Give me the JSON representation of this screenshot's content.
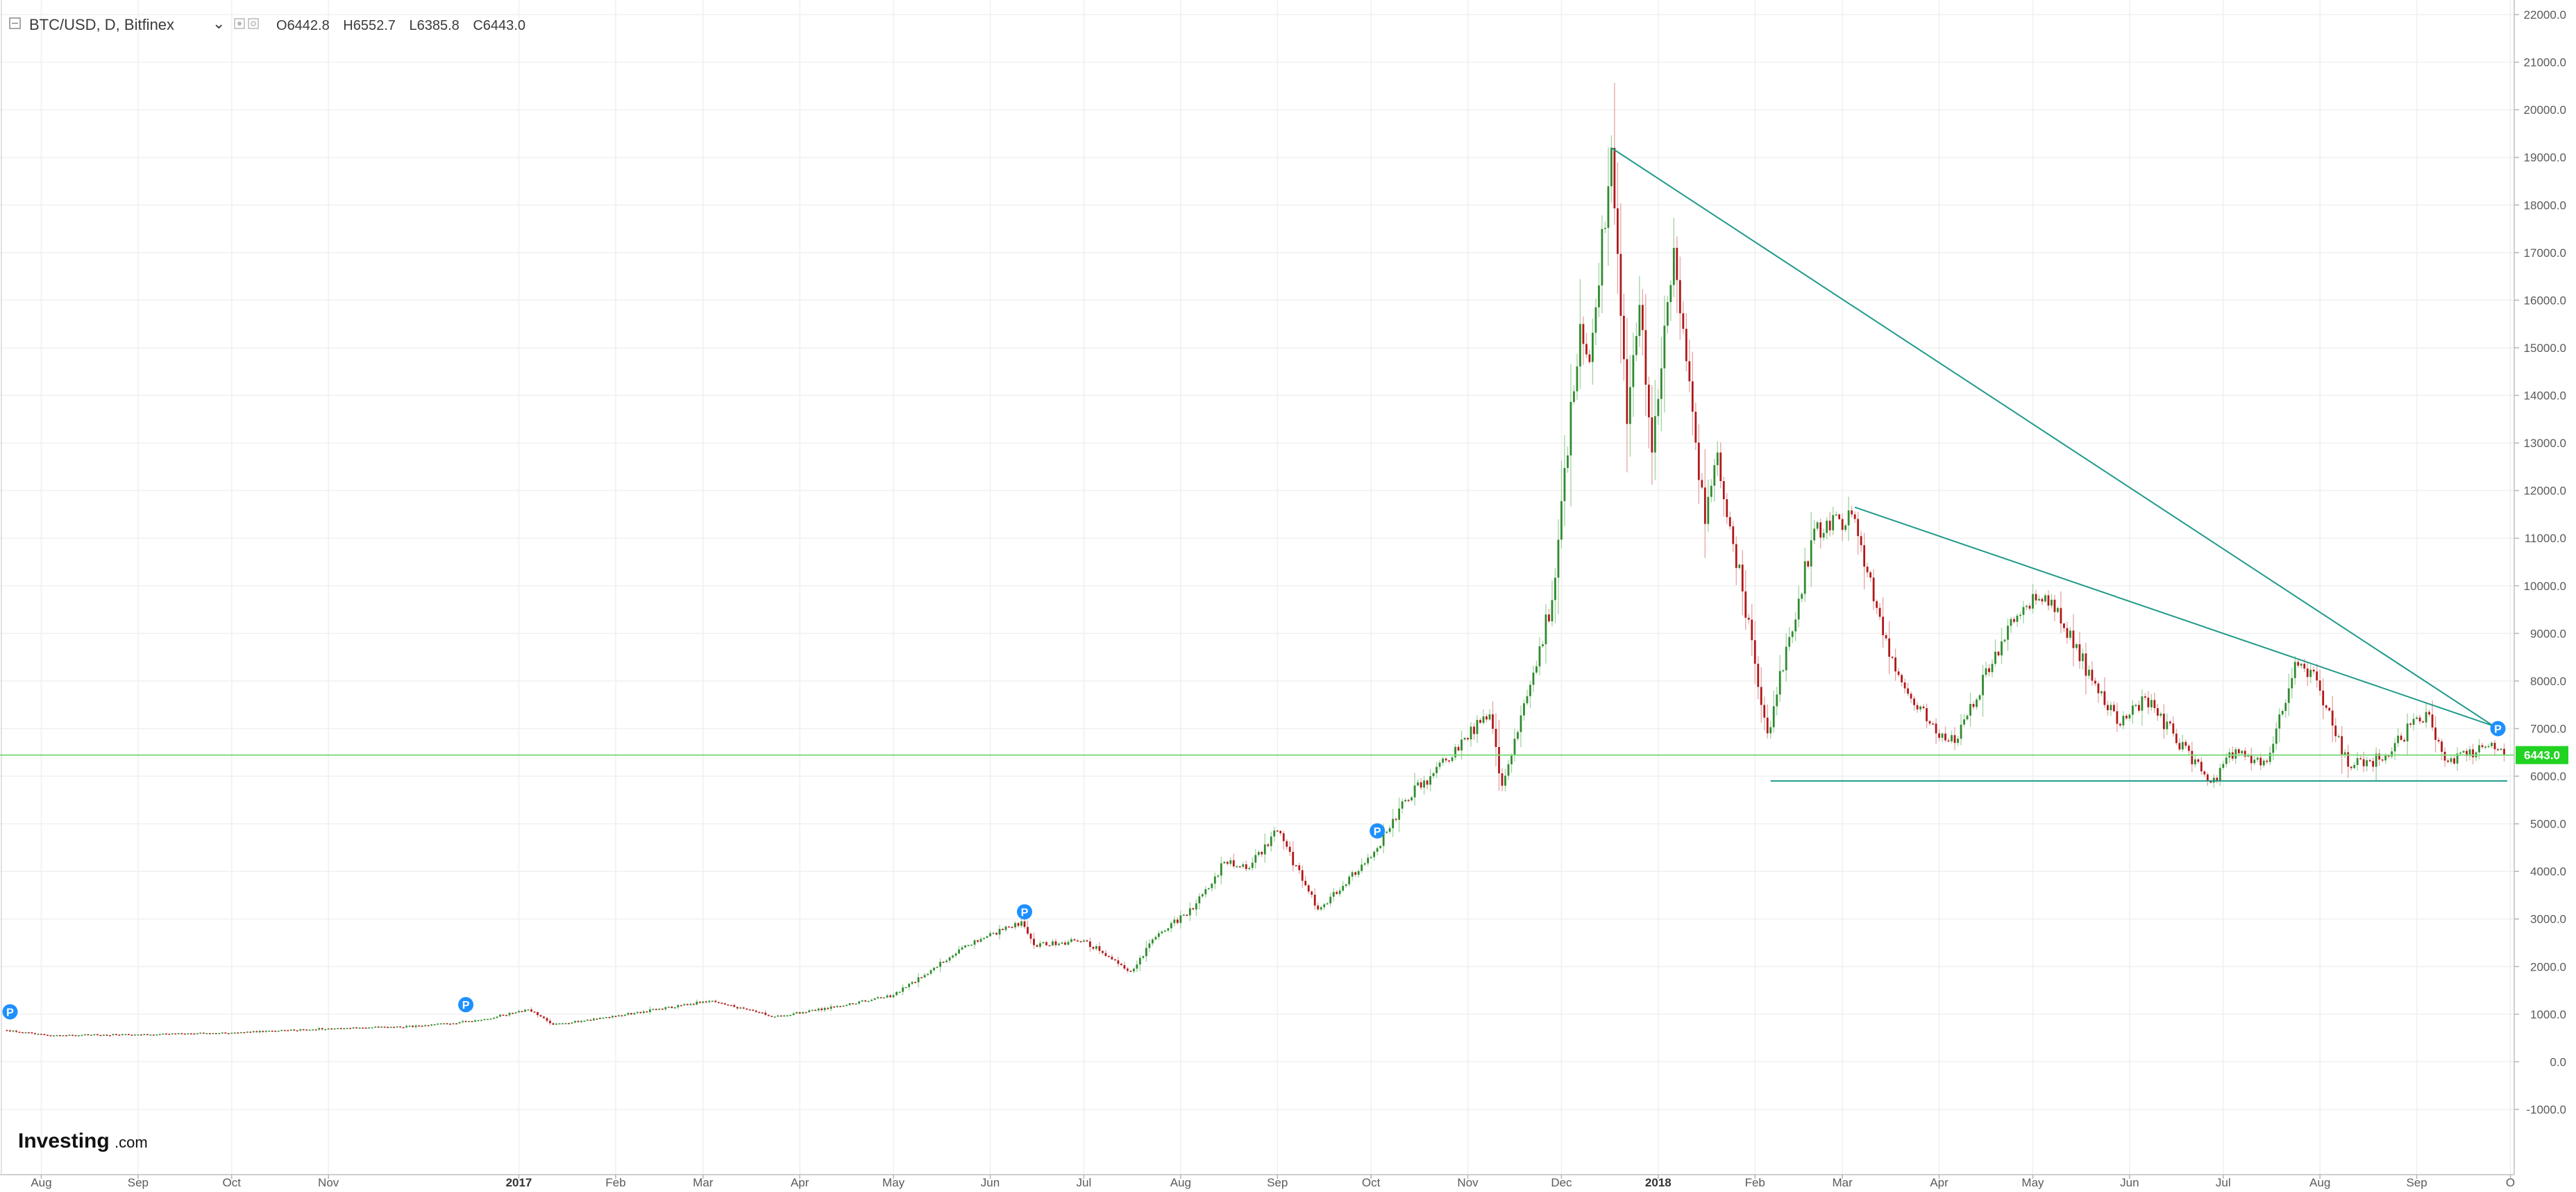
{
  "header": {
    "symbol": "BTC/USD, D, Bitfinex",
    "dropdown_glyph": "⌄",
    "ohlc": {
      "open_label": "O",
      "open": "6442.8",
      "high_label": "H",
      "high": "6552.7",
      "low_label": "L",
      "low": "6385.8",
      "close_label": "C",
      "close": "6443.0"
    }
  },
  "logo": {
    "main": "Investing",
    "sub": ".com"
  },
  "price_tag": "6443.0",
  "colors": {
    "up": "#2e8b2e",
    "down": "#b01818",
    "trendline": "#1f9a8a",
    "last_price_line": "#7fdc7f",
    "price_tag_bg": "#22d322",
    "marker": "#1e90ff",
    "grid": "#f0f0f0"
  },
  "chart_data": {
    "type": "candlestick",
    "title": "BTC/USD, D, Bitfinex",
    "xlabel": "",
    "ylabel": "",
    "x_range": [
      "2016-07-21",
      "2018-09-30"
    ],
    "ylim": [
      -1000,
      22000
    ],
    "y_ticks": [
      "22000.0",
      "21000.0",
      "20000.0",
      "19000.0",
      "18000.0",
      "17000.0",
      "16000.0",
      "15000.0",
      "14000.0",
      "13000.0",
      "12000.0",
      "11000.0",
      "10000.0",
      "9000.0",
      "8000.0",
      "7000.0",
      "6000.0",
      "5000.0",
      "4000.0",
      "3000.0",
      "2000.0",
      "1000.0",
      "0.0",
      "-1000.0"
    ],
    "x_ticks": [
      {
        "label": "Aug",
        "date": "2016-08-01"
      },
      {
        "label": "Sep",
        "date": "2016-09-01"
      },
      {
        "label": "Oct",
        "date": "2016-10-01"
      },
      {
        "label": "Nov",
        "date": "2016-11-01"
      },
      {
        "label": "2017",
        "date": "2017-01-01",
        "bold": true
      },
      {
        "label": "Feb",
        "date": "2017-02-01"
      },
      {
        "label": "Mar",
        "date": "2017-03-01"
      },
      {
        "label": "Apr",
        "date": "2017-04-01"
      },
      {
        "label": "May",
        "date": "2017-05-01"
      },
      {
        "label": "Jun",
        "date": "2017-06-01"
      },
      {
        "label": "Jul",
        "date": "2017-07-01"
      },
      {
        "label": "Aug",
        "date": "2017-08-01"
      },
      {
        "label": "Sep",
        "date": "2017-09-01"
      },
      {
        "label": "Oct",
        "date": "2017-10-01"
      },
      {
        "label": "Nov",
        "date": "2017-11-01"
      },
      {
        "label": "Dec",
        "date": "2017-12-01"
      },
      {
        "label": "2018",
        "date": "2018-01-01",
        "bold": true
      },
      {
        "label": "Feb",
        "date": "2018-02-01"
      },
      {
        "label": "Mar",
        "date": "2018-03-01"
      },
      {
        "label": "Apr",
        "date": "2018-04-01"
      },
      {
        "label": "May",
        "date": "2018-05-01"
      },
      {
        "label": "Jun",
        "date": "2018-06-01"
      },
      {
        "label": "Jul",
        "date": "2018-07-01"
      },
      {
        "label": "Aug",
        "date": "2018-08-01"
      },
      {
        "label": "Sep",
        "date": "2018-09-01"
      },
      {
        "label": "O",
        "date": "2018-10-01"
      }
    ],
    "close_anchors": [
      [
        "2016-07-21",
        660
      ],
      [
        "2016-08-03",
        560
      ],
      [
        "2016-09-01",
        575
      ],
      [
        "2016-10-01",
        610
      ],
      [
        "2016-11-01",
        700
      ],
      [
        "2016-12-01",
        750
      ],
      [
        "2016-12-20",
        880
      ],
      [
        "2017-01-04",
        1100
      ],
      [
        "2017-01-12",
        780
      ],
      [
        "2017-02-01",
        960
      ],
      [
        "2017-03-03",
        1280
      ],
      [
        "2017-03-24",
        950
      ],
      [
        "2017-04-15",
        1180
      ],
      [
        "2017-05-01",
        1400
      ],
      [
        "2017-05-25",
        2450
      ],
      [
        "2017-06-11",
        2950
      ],
      [
        "2017-06-15",
        2450
      ],
      [
        "2017-07-01",
        2550
      ],
      [
        "2017-07-16",
        1900
      ],
      [
        "2017-07-25",
        2700
      ],
      [
        "2017-08-05",
        3200
      ],
      [
        "2017-08-15",
        4200
      ],
      [
        "2017-08-22",
        4050
      ],
      [
        "2017-09-01",
        4850
      ],
      [
        "2017-09-14",
        3200
      ],
      [
        "2017-10-01",
        4300
      ],
      [
        "2017-10-12",
        5500
      ],
      [
        "2017-10-20",
        6000
      ],
      [
        "2017-11-08",
        7300
      ],
      [
        "2017-11-12",
        5800
      ],
      [
        "2017-11-28",
        9700
      ],
      [
        "2017-12-07",
        15500
      ],
      [
        "2017-12-10",
        14700
      ],
      [
        "2017-12-17",
        19200
      ],
      [
        "2017-12-22",
        13400
      ],
      [
        "2017-12-26",
        15900
      ],
      [
        "2017-12-30",
        12800
      ],
      [
        "2018-01-06",
        17100
      ],
      [
        "2018-01-16",
        11300
      ],
      [
        "2018-01-20",
        12800
      ],
      [
        "2018-02-05",
        6900
      ],
      [
        "2018-02-20",
        11200
      ],
      [
        "2018-03-04",
        11500
      ],
      [
        "2018-03-18",
        8200
      ],
      [
        "2018-03-31",
        6900
      ],
      [
        "2018-04-06",
        6700
      ],
      [
        "2018-04-24",
        9300
      ],
      [
        "2018-05-05",
        9800
      ],
      [
        "2018-05-28",
        7100
      ],
      [
        "2018-06-06",
        7650
      ],
      [
        "2018-06-24",
        6100
      ],
      [
        "2018-06-29",
        5900
      ],
      [
        "2018-07-03",
        6500
      ],
      [
        "2018-07-15",
        6300
      ],
      [
        "2018-07-24",
        8400
      ],
      [
        "2018-07-30",
        8200
      ],
      [
        "2018-08-10",
        6200
      ],
      [
        "2018-08-20",
        6350
      ],
      [
        "2018-09-04",
        7350
      ],
      [
        "2018-09-11",
        6300
      ],
      [
        "2018-09-20",
        6500
      ],
      [
        "2018-09-25",
        6700
      ],
      [
        "2018-09-29",
        6443
      ]
    ],
    "last_price": 6443.0,
    "trendlines": [
      {
        "start": [
          "2017-12-17",
          19200
        ],
        "end": [
          "2018-09-28",
          6950
        ]
      },
      {
        "start": [
          "2018-03-05",
          11650
        ],
        "end": [
          "2018-09-28",
          7000
        ]
      },
      {
        "start": [
          "2018-02-06",
          5900
        ],
        "end": [
          "2018-09-30",
          5900
        ]
      }
    ],
    "markers": [
      {
        "date": "2016-07-22",
        "price": 1050,
        "label": "P"
      },
      {
        "date": "2016-12-15",
        "price": 1200,
        "label": "P"
      },
      {
        "date": "2017-06-12",
        "price": 3150,
        "label": "P"
      },
      {
        "date": "2017-10-03",
        "price": 4850,
        "label": "P"
      },
      {
        "date": "2018-09-27",
        "price": 7000,
        "label": "P"
      }
    ],
    "grid": true
  }
}
